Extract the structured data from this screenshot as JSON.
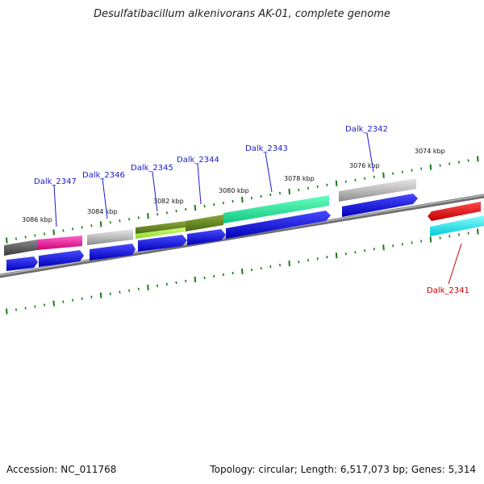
{
  "title": "Desulfatibacillum alkenivorans AK-01, complete genome",
  "footer": {
    "accession": "Accession: NC_011768",
    "stats": "Topology: circular; Length: 6,517,073 bp; Genes: 5,314"
  },
  "colors": {
    "backbone": "#8c8c8c",
    "tick": "#1a7a1a",
    "label_blue": "#1a1acc",
    "label_red": "#cc0000",
    "cds": "#1010e8"
  },
  "scale_labels": [
    "3086 kbp",
    "3084 kbp",
    "3082 kbp",
    "3080 kbp",
    "3078 kbp",
    "3076 kbp",
    "3074 kbp"
  ],
  "genes": [
    {
      "name": "Dalk_2347",
      "color": "label_blue"
    },
    {
      "name": "Dalk_2346",
      "color": "label_blue"
    },
    {
      "name": "Dalk_2345",
      "color": "label_blue"
    },
    {
      "name": "Dalk_2344",
      "color": "label_blue"
    },
    {
      "name": "Dalk_2343",
      "color": "label_blue"
    },
    {
      "name": "Dalk_2342",
      "color": "label_blue"
    },
    {
      "name": "Dalk_2341",
      "color": "label_red"
    }
  ]
}
